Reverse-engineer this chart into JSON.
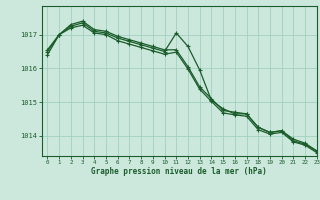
{
  "title": "Graphe pression niveau de la mer (hPa)",
  "background_color": "#cce8dd",
  "grid_color": "#99ccbb",
  "line_color": "#1a5c2a",
  "xlim": [
    -0.5,
    23
  ],
  "ylim": [
    1013.4,
    1017.85
  ],
  "yticks": [
    1014,
    1015,
    1016,
    1017
  ],
  "xticks": [
    0,
    1,
    2,
    3,
    4,
    5,
    6,
    7,
    8,
    9,
    10,
    11,
    12,
    13,
    14,
    15,
    16,
    17,
    18,
    19,
    20,
    21,
    22,
    23
  ],
  "series1": [
    1016.5,
    1017.0,
    1017.25,
    1017.35,
    1017.1,
    1017.05,
    1016.9,
    1016.8,
    1016.7,
    1016.6,
    1016.5,
    1017.05,
    1016.65,
    1015.95,
    1015.05,
    1014.8,
    1014.65,
    1014.65,
    1014.25,
    1014.1,
    1014.15,
    1013.85,
    1013.75,
    1013.55
  ],
  "series2": [
    1016.55,
    1017.0,
    1017.3,
    1017.4,
    1017.15,
    1017.1,
    1016.95,
    1016.85,
    1016.75,
    1016.65,
    1016.55,
    1016.55,
    1016.05,
    1015.45,
    1015.1,
    1014.75,
    1014.7,
    1014.65,
    1014.25,
    1014.1,
    1014.15,
    1013.9,
    1013.78,
    1013.55
  ],
  "series3": [
    1016.4,
    1017.0,
    1017.2,
    1017.28,
    1017.05,
    1017.0,
    1016.82,
    1016.72,
    1016.62,
    1016.52,
    1016.42,
    1016.48,
    1015.98,
    1015.38,
    1015.02,
    1014.68,
    1014.62,
    1014.58,
    1014.18,
    1014.05,
    1014.1,
    1013.82,
    1013.72,
    1013.5
  ],
  "marker": "+",
  "markersize": 3.5,
  "linewidth": 0.9
}
